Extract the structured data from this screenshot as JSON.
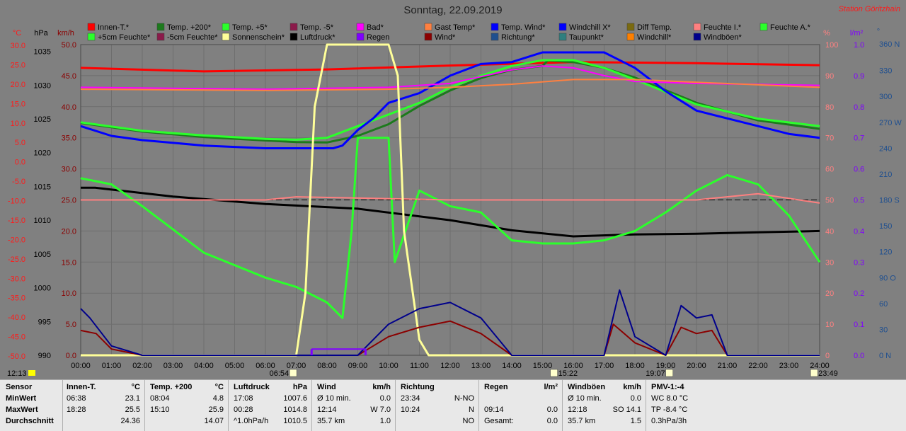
{
  "header": {
    "title": "Sonntag, 22.09.2019",
    "station": "Station Göritzhain"
  },
  "legend": [
    {
      "label": "Innen-T.*",
      "color": "#ff0000"
    },
    {
      "label": "Temp. +200*",
      "color": "#1c7a1c"
    },
    {
      "label": "Temp. +5*",
      "color": "#2bff2b"
    },
    {
      "label": "Temp. -5*",
      "color": "#8b1a4a"
    },
    {
      "label": "Bad*",
      "color": "#ff00ff"
    },
    {
      "label": "Gast Temp*",
      "color": "#ff8040"
    },
    {
      "label": "Temp. Wind*",
      "color": "#0000ff"
    },
    {
      "label": "Windchill X*",
      "color": "#0000ff"
    },
    {
      "label": "Diff Temp.",
      "color": "#7a6a10"
    },
    {
      "label": "Feuchte I.*",
      "color": "#ff8080"
    },
    {
      "label": "Feuchte A.*",
      "color": "#2bff2b"
    },
    {
      "label": "+5cm Feuchte*",
      "color": "#2bff2b"
    },
    {
      "label": "-5cm Feuchte*",
      "color": "#8b1a4a"
    },
    {
      "label": "Sonnenschein*",
      "color": "#ffff99"
    },
    {
      "label": "Luftdruck*",
      "color": "#000000"
    },
    {
      "label": "Regen",
      "color": "#8000ff"
    },
    {
      "label": "Wind*",
      "color": "#8b0000"
    },
    {
      "label": "Richtung*",
      "color": "#1f4f8f"
    },
    {
      "label": "Taupunkt*",
      "color": "#2f7f7f"
    },
    {
      "label": "Windchill*",
      "color": "#ff8000"
    },
    {
      "label": "Windböen*",
      "color": "#00008b"
    }
  ],
  "axes": {
    "unit_c": "°C",
    "unit_hpa": "hPa",
    "unit_kmh": "km/h",
    "unit_pct": "%",
    "unit_lm2": "l/m²",
    "unit_deg": "°",
    "celsius": [
      "30.0",
      "25.0",
      "20.0",
      "15.0",
      "10.0",
      "5.0",
      "0.0",
      "-5.0",
      "-10.0",
      "-15.0",
      "-20.0",
      "-25.0",
      "-30.0",
      "-35.0",
      "-40.0",
      "-45.0",
      "-50.0"
    ],
    "hpa": [
      "1035",
      "1030",
      "1025",
      "1020",
      "1015",
      "1010",
      "1005",
      "1000",
      "995",
      "990"
    ],
    "kmh": [
      "50.0",
      "45.0",
      "40.0",
      "35.0",
      "30.0",
      "25.0",
      "20.0",
      "15.0",
      "10.0",
      "5.0",
      "0.0"
    ],
    "pct": [
      "100",
      "90",
      "80",
      "70",
      "60",
      "50",
      "40",
      "30",
      "20",
      "10",
      "0"
    ],
    "lm2": [
      "1.0",
      "0.9",
      "0.8",
      "0.7",
      "0.6",
      "0.5",
      "0.4",
      "0.3",
      "0.2",
      "0.1",
      "0.0"
    ],
    "deg": [
      "360 N",
      "330",
      "300",
      "270 W",
      "240",
      "210",
      "180 S",
      "150",
      "120",
      "90 O",
      "60",
      "30",
      "0 N"
    ],
    "hours": [
      "00:00",
      "01:00",
      "02:00",
      "03:00",
      "04:00",
      "05:00",
      "06:00",
      "07:00",
      "08:00",
      "09:00",
      "10:00",
      "11:00",
      "12:00",
      "13:00",
      "14:00",
      "15:00",
      "16:00",
      "17:00",
      "18:00",
      "19:00",
      "20:00",
      "21:00",
      "22:00",
      "23:00",
      "24:00"
    ]
  },
  "markers": {
    "moonset": "12:13",
    "sunrise": "06:54",
    "moonrise_mid": "15:22",
    "sunset": "19:07",
    "moonrise": "23:49"
  },
  "chart_data": {
    "type": "line",
    "title": "Sonntag, 22.09.2019",
    "x_range": [
      "00:00",
      "24:00"
    ],
    "series": [
      {
        "name": "Innen-T.*",
        "axis": "°C",
        "x": [
          0,
          4,
          8,
          12,
          16,
          20,
          24
        ],
        "y": [
          24.0,
          23.1,
          23.6,
          24.6,
          25.5,
          25.2,
          24.7
        ]
      },
      {
        "name": "Temp. +200*",
        "axis": "°C",
        "x": [
          0,
          2,
          4,
          6,
          7,
          8,
          9,
          10,
          11,
          12,
          13,
          14,
          15,
          15.17,
          16,
          17,
          18,
          20,
          22,
          24
        ],
        "y": [
          9.8,
          7.6,
          6.2,
          5.3,
          4.9,
          4.8,
          6.5,
          9.5,
          14.2,
          18.2,
          21.4,
          23.5,
          24.5,
          25.9,
          25.5,
          24.0,
          21.5,
          15.0,
          10.5,
          8.3
        ]
      },
      {
        "name": "Temp. +5*",
        "axis": "°C",
        "x": [
          0,
          2,
          4,
          6,
          7,
          8,
          9,
          10,
          11,
          12,
          13,
          14,
          15,
          16,
          17,
          18,
          20,
          22,
          24
        ],
        "y": [
          10.0,
          7.8,
          6.6,
          5.7,
          5.5,
          6.0,
          9.0,
          12.0,
          15.0,
          19.0,
          22.0,
          24.5,
          26.0,
          26.0,
          24.0,
          21.0,
          14.6,
          10.9,
          9.0
        ]
      },
      {
        "name": "Temp. Wind*",
        "axis": "°C",
        "x": [
          0,
          1,
          2,
          4,
          6,
          8.2,
          8.5,
          9,
          9.5,
          10,
          11,
          12,
          13,
          14,
          15,
          16,
          17,
          18,
          19,
          20,
          21,
          22,
          23,
          24
        ],
        "y": [
          9.0,
          6.5,
          5.4,
          4.0,
          3.3,
          3.3,
          4.0,
          8.0,
          11.0,
          15.0,
          17.5,
          22.0,
          25.0,
          25.5,
          28.0,
          28.0,
          28.0,
          24.0,
          18.0,
          13.0,
          11.0,
          9.0,
          7.0,
          6.0
        ]
      },
      {
        "name": "Bad*",
        "axis": "°C",
        "x": [
          0,
          6,
          10,
          12,
          14,
          15,
          16,
          17,
          18,
          20,
          24
        ],
        "y": [
          19.0,
          18.5,
          19.0,
          20.0,
          23.5,
          24.5,
          24.0,
          22.0,
          20.5,
          20.0,
          19.5
        ]
      },
      {
        "name": "Gast Temp*",
        "axis": "°C",
        "x": [
          0,
          6,
          10,
          12,
          14,
          16,
          18,
          20,
          24
        ],
        "y": [
          18.5,
          18.2,
          18.5,
          19.0,
          19.8,
          21.0,
          21.0,
          20.3,
          19.0
        ]
      },
      {
        "name": "Luftdruck*",
        "axis": "hPa",
        "x": [
          0,
          0.47,
          3,
          6,
          9,
          12,
          14,
          16,
          18,
          20,
          22,
          24
        ],
        "y": [
          1014.8,
          1014.8,
          1013.5,
          1012.4,
          1011.7,
          1010.0,
          1008.5,
          1007.6,
          1007.9,
          1008.0,
          1008.2,
          1008.4
        ]
      },
      {
        "name": "Feuchte A.*",
        "axis": "%",
        "x": [
          0,
          1,
          2,
          4,
          6,
          7,
          8,
          8.5,
          8.8,
          9,
          10,
          10.2,
          11,
          12,
          13,
          14,
          15,
          16,
          17,
          18,
          19,
          20,
          21,
          22,
          23,
          24
        ],
        "y": [
          57,
          55,
          48,
          33,
          25,
          22,
          17,
          12,
          40,
          70,
          70,
          30,
          53,
          48,
          46,
          37,
          36,
          36,
          37,
          40,
          46,
          53,
          58,
          55,
          45,
          30
        ]
      },
      {
        "name": "Feuchte I.*",
        "axis": "%",
        "x": [
          0,
          6,
          7,
          12,
          14,
          17,
          18,
          20,
          21,
          22,
          24
        ],
        "y": [
          50,
          50,
          51,
          50,
          50,
          50,
          50,
          50,
          51,
          52,
          49
        ]
      },
      {
        "name": "Sonnenschein*",
        "axis": "%",
        "x": [
          0,
          7,
          7.3,
          7.6,
          8,
          10,
          10.3,
          10.5,
          11,
          11.3,
          24
        ],
        "y": [
          0,
          0,
          20,
          80,
          100,
          100,
          90,
          40,
          5,
          0,
          0
        ]
      },
      {
        "name": "Wind*",
        "axis": "km/h",
        "x": [
          0,
          0.5,
          1,
          2,
          9,
          10,
          11,
          12,
          13,
          14,
          17,
          17.3,
          18,
          19,
          19.5,
          20,
          20.5,
          21,
          24
        ],
        "y": [
          4.0,
          3.5,
          1.0,
          0,
          0,
          3.0,
          4.5,
          5.5,
          3.5,
          0,
          0,
          5.0,
          2.0,
          0,
          4.5,
          3.5,
          4.0,
          0,
          0
        ]
      },
      {
        "name": "Windböen*",
        "axis": "km/h",
        "x": [
          0,
          0.3,
          1,
          2,
          9,
          10,
          11,
          12,
          13,
          14,
          17,
          17.5,
          18,
          19,
          19.5,
          20,
          20.5,
          21,
          24
        ],
        "y": [
          7.5,
          6.0,
          1.5,
          0,
          0,
          5.0,
          7.5,
          8.5,
          6.0,
          0,
          0,
          10.5,
          3.0,
          0,
          8.0,
          6.0,
          6.5,
          0,
          0
        ]
      },
      {
        "name": "Regen",
        "axis": "l/m²",
        "x": [
          7.5,
          9.25
        ],
        "y": [
          0.02,
          0.02
        ]
      }
    ],
    "axis_ranges": {
      "°C": [
        -50,
        30
      ],
      "hPa": [
        990,
        1036
      ],
      "km/h": [
        0,
        50
      ],
      "%": [
        0,
        100
      ],
      "l/m²": [
        0,
        1.0
      ],
      "°": [
        0,
        360
      ]
    }
  },
  "stats": {
    "sensor": {
      "label": "Sensor",
      "rows": [
        "MinWert",
        "MaxWert",
        "Durchschnitt"
      ]
    },
    "innen": {
      "title": "Innen-T.",
      "unit": "°C",
      "rows": [
        [
          "06:38",
          "23.1"
        ],
        [
          "18:28",
          "25.5"
        ],
        [
          "",
          "24.36"
        ]
      ]
    },
    "temp200": {
      "title": "Temp. +200",
      "unit": "°C",
      "rows": [
        [
          "08:04",
          "4.8"
        ],
        [
          "15:10",
          "25.9"
        ],
        [
          "",
          "14.07"
        ]
      ]
    },
    "luft": {
      "title": "Luftdruck",
      "unit": "hPa",
      "rows": [
        [
          "17:08",
          "1007.6"
        ],
        [
          "00:28",
          "1014.8"
        ],
        [
          "^1.0hPa/h",
          "1010.5"
        ]
      ]
    },
    "wind": {
      "title": "Wind",
      "unit": "km/h",
      "rows": [
        [
          "Ø 10 min.",
          "0.0"
        ],
        [
          "12:14",
          "W 7.0"
        ],
        [
          "35.7 km",
          "1.0"
        ]
      ]
    },
    "richtung": {
      "title": "Richtung",
      "unit": "",
      "rows": [
        [
          "23:34",
          "N-NO"
        ],
        [
          "10:24",
          "N"
        ],
        [
          "",
          "NO"
        ]
      ]
    },
    "regen": {
      "title": "Regen",
      "unit": "l/m²",
      "rows": [
        [
          "",
          ""
        ],
        [
          "09:14",
          "0.0"
        ],
        [
          "Gesamt:",
          "0.0"
        ]
      ]
    },
    "boen": {
      "title": "Windböen",
      "unit": "km/h",
      "rows": [
        [
          "Ø 10 min.",
          "0.0"
        ],
        [
          "12:18",
          "SO 14.1"
        ],
        [
          "35.7 km",
          "1.5"
        ]
      ]
    },
    "pmv": {
      "title": "PMV-1:-4",
      "rows": [
        "WC 8.0 °C",
        "TP -8.4 °C",
        "0.3hPa/3h"
      ]
    }
  }
}
